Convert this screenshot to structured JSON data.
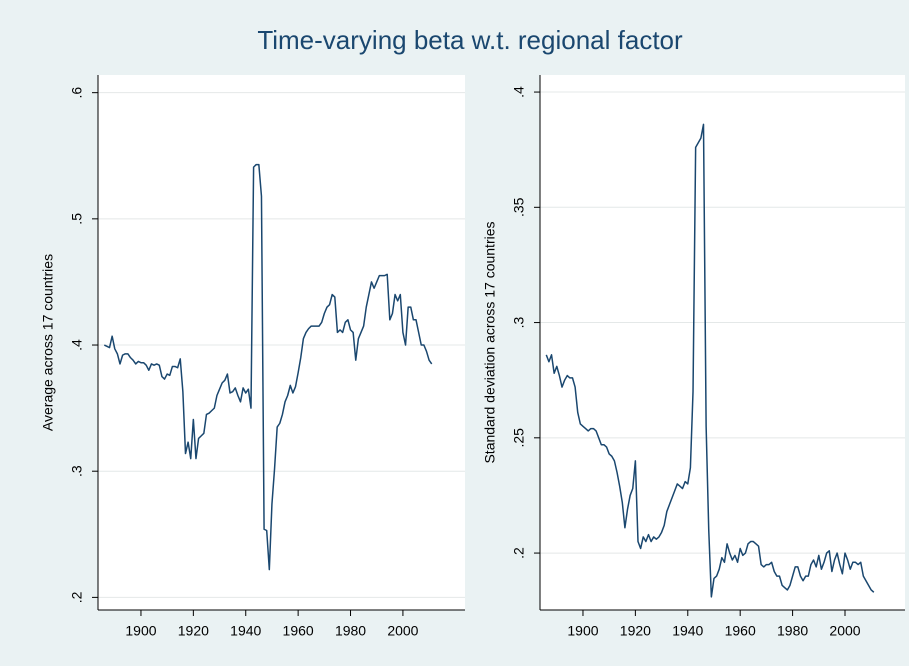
{
  "title": "Time-varying beta w.t. regional factor",
  "chart_data": [
    {
      "type": "line",
      "ylabel": "Average across 17 countries",
      "x": [
        1886,
        1887,
        1888,
        1889,
        1890,
        1891,
        1892,
        1893,
        1894,
        1895,
        1896,
        1897,
        1898,
        1899,
        1900,
        1901,
        1902,
        1903,
        1904,
        1905,
        1906,
        1907,
        1908,
        1909,
        1910,
        1911,
        1912,
        1913,
        1914,
        1915,
        1916,
        1917,
        1918,
        1919,
        1920,
        1921,
        1922,
        1923,
        1924,
        1925,
        1926,
        1927,
        1928,
        1929,
        1930,
        1931,
        1932,
        1933,
        1934,
        1935,
        1936,
        1937,
        1938,
        1939,
        1940,
        1941,
        1942,
        1943,
        1944,
        1945,
        1946,
        1947,
        1948,
        1949,
        1950,
        1951,
        1952,
        1953,
        1954,
        1955,
        1956,
        1957,
        1958,
        1959,
        1960,
        1961,
        1962,
        1963,
        1964,
        1965,
        1966,
        1967,
        1968,
        1969,
        1970,
        1971,
        1972,
        1973,
        1974,
        1975,
        1976,
        1977,
        1978,
        1979,
        1980,
        1981,
        1982,
        1983,
        1984,
        1985,
        1986,
        1987,
        1988,
        1989,
        1990,
        1991,
        1992,
        1993,
        1994,
        1995,
        1996,
        1997,
        1998,
        1999,
        2000,
        2001,
        2002,
        2003,
        2004,
        2005,
        2006,
        2007,
        2008,
        2009,
        2010,
        2011
      ],
      "series": [
        {
          "color": "#1a476f",
          "values": [
            0.4,
            0.399,
            0.398,
            0.407,
            0.397,
            0.393,
            0.385,
            0.392,
            0.393,
            0.393,
            0.39,
            0.388,
            0.385,
            0.387,
            0.386,
            0.386,
            0.384,
            0.38,
            0.385,
            0.384,
            0.385,
            0.384,
            0.375,
            0.373,
            0.377,
            0.376,
            0.383,
            0.383,
            0.382,
            0.389,
            0.363,
            0.314,
            0.323,
            0.31,
            0.341,
            0.31,
            0.326,
            0.328,
            0.33,
            0.345,
            0.346,
            0.348,
            0.35,
            0.36,
            0.365,
            0.37,
            0.372,
            0.377,
            0.362,
            0.363,
            0.366,
            0.36,
            0.355,
            0.366,
            0.362,
            0.365,
            0.35,
            0.541,
            0.543,
            0.543,
            0.518,
            0.254,
            0.253,
            0.222,
            0.274,
            0.302,
            0.335,
            0.338,
            0.345,
            0.355,
            0.36,
            0.368,
            0.362,
            0.367,
            0.378,
            0.39,
            0.405,
            0.41,
            0.413,
            0.415,
            0.415,
            0.415,
            0.415,
            0.418,
            0.425,
            0.43,
            0.432,
            0.44,
            0.438,
            0.41,
            0.412,
            0.41,
            0.418,
            0.42,
            0.412,
            0.41,
            0.388,
            0.405,
            0.41,
            0.415,
            0.43,
            0.44,
            0.45,
            0.445,
            0.45,
            0.455,
            0.455,
            0.455,
            0.456,
            0.42,
            0.425,
            0.44,
            0.435,
            0.44,
            0.41,
            0.4,
            0.43,
            0.43,
            0.42,
            0.42,
            0.41,
            0.4,
            0.4,
            0.395,
            0.388,
            0.385
          ]
        }
      ],
      "xlim": [
        1883.6,
        2023.7
      ],
      "ylim": [
        0.19,
        0.614
      ],
      "xticks": [
        1900,
        1920,
        1940,
        1960,
        1980,
        2000
      ],
      "yticks": [
        {
          "value": 0.2,
          "label": ".2"
        },
        {
          "value": 0.3,
          "label": ".3"
        },
        {
          "value": 0.4,
          "label": ".4"
        },
        {
          "value": 0.5,
          "label": ".5"
        },
        {
          "value": 0.6,
          "label": ".6"
        }
      ],
      "grid": true
    },
    {
      "type": "line",
      "ylabel": "Standard deviation across 17 countries",
      "x": [
        1886,
        1887,
        1888,
        1889,
        1890,
        1891,
        1892,
        1893,
        1894,
        1895,
        1896,
        1897,
        1898,
        1899,
        1900,
        1901,
        1902,
        1903,
        1904,
        1905,
        1906,
        1907,
        1908,
        1909,
        1910,
        1911,
        1912,
        1913,
        1914,
        1915,
        1916,
        1917,
        1918,
        1919,
        1920,
        1921,
        1922,
        1923,
        1924,
        1925,
        1926,
        1927,
        1928,
        1929,
        1930,
        1931,
        1932,
        1933,
        1934,
        1935,
        1936,
        1937,
        1938,
        1939,
        1940,
        1941,
        1942,
        1943,
        1944,
        1945,
        1946,
        1947,
        1948,
        1949,
        1950,
        1951,
        1952,
        1953,
        1954,
        1955,
        1956,
        1957,
        1958,
        1959,
        1960,
        1961,
        1962,
        1963,
        1964,
        1965,
        1966,
        1967,
        1968,
        1969,
        1970,
        1971,
        1972,
        1973,
        1974,
        1975,
        1976,
        1977,
        1978,
        1979,
        1980,
        1981,
        1982,
        1983,
        1984,
        1985,
        1986,
        1987,
        1988,
        1989,
        1990,
        1991,
        1992,
        1993,
        1994,
        1995,
        1996,
        1997,
        1998,
        1999,
        2000,
        2001,
        2002,
        2003,
        2004,
        2005,
        2006,
        2007,
        2008,
        2009,
        2010,
        2011
      ],
      "series": [
        {
          "color": "#1a476f",
          "values": [
            0.286,
            0.283,
            0.286,
            0.278,
            0.281,
            0.277,
            0.272,
            0.275,
            0.277,
            0.276,
            0.276,
            0.272,
            0.261,
            0.256,
            0.255,
            0.254,
            0.253,
            0.254,
            0.254,
            0.253,
            0.25,
            0.247,
            0.247,
            0.246,
            0.243,
            0.242,
            0.24,
            0.235,
            0.229,
            0.222,
            0.211,
            0.219,
            0.225,
            0.228,
            0.24,
            0.205,
            0.202,
            0.207,
            0.205,
            0.208,
            0.205,
            0.207,
            0.206,
            0.207,
            0.209,
            0.212,
            0.218,
            0.221,
            0.224,
            0.227,
            0.23,
            0.229,
            0.228,
            0.231,
            0.23,
            0.237,
            0.27,
            0.376,
            0.378,
            0.38,
            0.386,
            0.255,
            0.21,
            0.181,
            0.189,
            0.19,
            0.193,
            0.198,
            0.196,
            0.204,
            0.2,
            0.197,
            0.199,
            0.196,
            0.202,
            0.199,
            0.2,
            0.204,
            0.205,
            0.205,
            0.204,
            0.203,
            0.195,
            0.194,
            0.195,
            0.195,
            0.196,
            0.192,
            0.19,
            0.19,
            0.186,
            0.185,
            0.184,
            0.186,
            0.19,
            0.194,
            0.194,
            0.19,
            0.188,
            0.19,
            0.19,
            0.195,
            0.197,
            0.194,
            0.199,
            0.193,
            0.196,
            0.2,
            0.201,
            0.192,
            0.197,
            0.2,
            0.195,
            0.191,
            0.2,
            0.197,
            0.193,
            0.196,
            0.196,
            0.195,
            0.196,
            0.19,
            0.188,
            0.186,
            0.184,
            0.183
          ]
        }
      ],
      "xlim": [
        1883.6,
        2022.9
      ],
      "ylim": [
        0.1753,
        0.4074
      ],
      "xticks": [
        1900,
        1920,
        1940,
        1960,
        1980,
        2000
      ],
      "yticks": [
        {
          "value": 0.2,
          "label": ".2"
        },
        {
          "value": 0.25,
          "label": ".25"
        },
        {
          "value": 0.3,
          "label": ".3"
        },
        {
          "value": 0.35,
          "label": ".35"
        },
        {
          "value": 0.4,
          "label": ".4"
        }
      ],
      "grid": true
    }
  ]
}
